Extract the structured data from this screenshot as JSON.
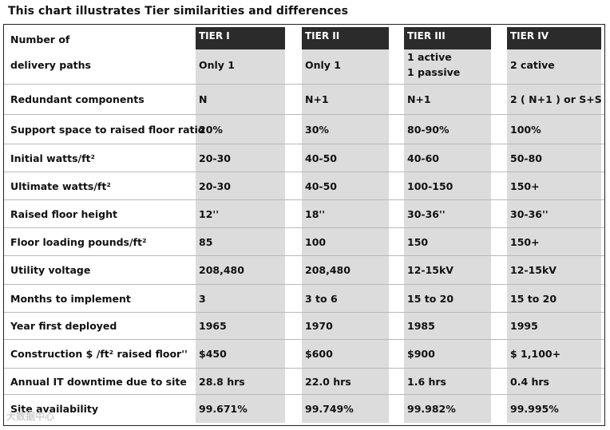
{
  "title": "This chart illustrates Tier similarities and differences",
  "headers": [
    "TIER I",
    "TIER II",
    "TIER III",
    "TIER IV"
  ],
  "rows": [
    {
      "label": [
        "Number of",
        "delivery paths"
      ],
      "cells": [
        "Only 1",
        "Only 1",
        "1 active\n1 passive",
        "2 cative"
      ]
    },
    {
      "label": [
        "Redundant components"
      ],
      "cells": [
        "N",
        "N+1",
        "N+1",
        "2 ( N+1 ) or S+S"
      ]
    },
    {
      "label": [
        "Support space to raised floor ratio"
      ],
      "cells": [
        "20%",
        "30%",
        "80-90%",
        "100%"
      ]
    },
    {
      "label": [
        "Initial watts/ft²"
      ],
      "cells": [
        "20-30",
        "40-50",
        "40-60",
        "50-80"
      ]
    },
    {
      "label": [
        "Ultimate watts/ft²"
      ],
      "cells": [
        "20-30",
        "40-50",
        "100-150",
        "150+"
      ]
    },
    {
      "label": [
        "Raised floor height"
      ],
      "cells": [
        "12''",
        "18''",
        "30-36''",
        "30-36''"
      ]
    },
    {
      "label": [
        "Floor loading pounds/ft²"
      ],
      "cells": [
        "85",
        "100",
        "150",
        "150+"
      ]
    },
    {
      "label": [
        "Utility voltage"
      ],
      "cells": [
        "208,480",
        "208,480",
        "12-15kV",
        "12-15kV"
      ]
    },
    {
      "label": [
        "Months to implement"
      ],
      "cells": [
        "3",
        "3 to 6",
        "15 to 20",
        "15 to 20"
      ]
    },
    {
      "label": [
        "Year first deployed"
      ],
      "cells": [
        "1965",
        "1970",
        "1985",
        "1995"
      ]
    },
    {
      "label": [
        "Construction  $ /ft² raised floor''"
      ],
      "cells": [
        "$450",
        "$600",
        "$900",
        " $ 1,100+"
      ]
    },
    {
      "label": [
        "Annual IT downtime due to site"
      ],
      "cells": [
        "28.8 hrs",
        "22.0 hrs",
        "1.6 hrs",
        "0.4 hrs"
      ]
    },
    {
      "label": [
        "Site availability"
      ],
      "cells": [
        "99.671%",
        "99.749%",
        "99.982%",
        "99.995%"
      ]
    }
  ],
  "watermark": "大数据中心",
  "colors": {
    "header_bg": "#2b2b2b",
    "column_shade": "#dcdcdc",
    "rule": "#b9b9b9"
  }
}
